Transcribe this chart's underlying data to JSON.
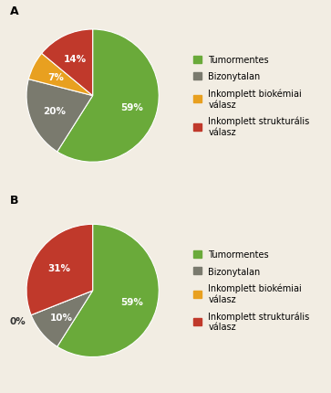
{
  "chart_A": {
    "label": "A",
    "values": [
      59,
      20,
      7,
      14
    ],
    "colors": [
      "#6aaa3a",
      "#7a7a6e",
      "#e8a020",
      "#c0392b"
    ],
    "pct_labels": [
      "59%",
      "20%",
      "7%",
      "14%"
    ]
  },
  "chart_B": {
    "label": "B",
    "values": [
      59,
      10,
      0,
      31
    ],
    "colors": [
      "#6aaa3a",
      "#7a7a6e",
      "#e8a020",
      "#c0392b"
    ],
    "pct_labels": [
      "59%",
      "10%",
      "0%",
      "31%"
    ]
  },
  "legend_labels": [
    "Tumormentes",
    "Bizonytalan",
    "Inkomplett biokémiai\nválasz",
    "Inkomplett strukturális\nválasz"
  ],
  "legend_colors": [
    "#6aaa3a",
    "#7a7a6e",
    "#e8a020",
    "#c0392b"
  ],
  "bg_color": "#f2ede3",
  "label_fontsize": 7.5,
  "legend_fontsize": 7.0,
  "section_label_fontsize": 9,
  "pie_label_color_white": "white",
  "pie_label_color_dark": "#333333"
}
